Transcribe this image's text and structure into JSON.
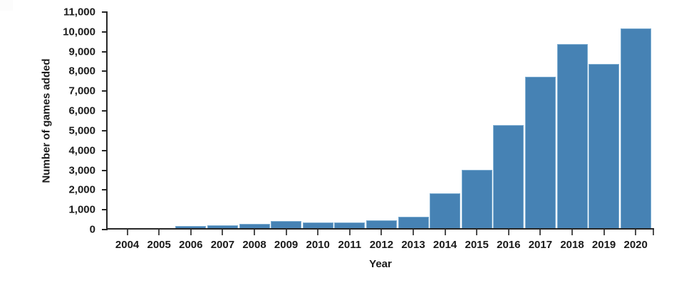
{
  "chart_data": {
    "type": "bar",
    "title": "",
    "xlabel": "Year",
    "ylabel": "Number of games added",
    "categories": [
      "2004",
      "2005",
      "2006",
      "2007",
      "2008",
      "2009",
      "2010",
      "2011",
      "2012",
      "2013",
      "2014",
      "2015",
      "2016",
      "2017",
      "2018",
      "2019",
      "2020"
    ],
    "values": [
      0,
      0,
      110,
      140,
      225,
      375,
      290,
      300,
      395,
      575,
      1760,
      2960,
      5220,
      7660,
      9310,
      8300,
      10100
    ],
    "ylim": [
      0,
      11000
    ],
    "y_tick_labels": [
      "0",
      "1,000",
      "2,000",
      "3,000",
      "4,000",
      "5,000",
      "6,000",
      "7,000",
      "8,000",
      "9,000",
      "10,000",
      "11,000"
    ],
    "grid": false,
    "legend": "none",
    "colors": {
      "bar_fill": "#4682b4",
      "bar_edge": "#7aabd0",
      "axis": "#262626",
      "text": "#1a1a1a"
    }
  }
}
